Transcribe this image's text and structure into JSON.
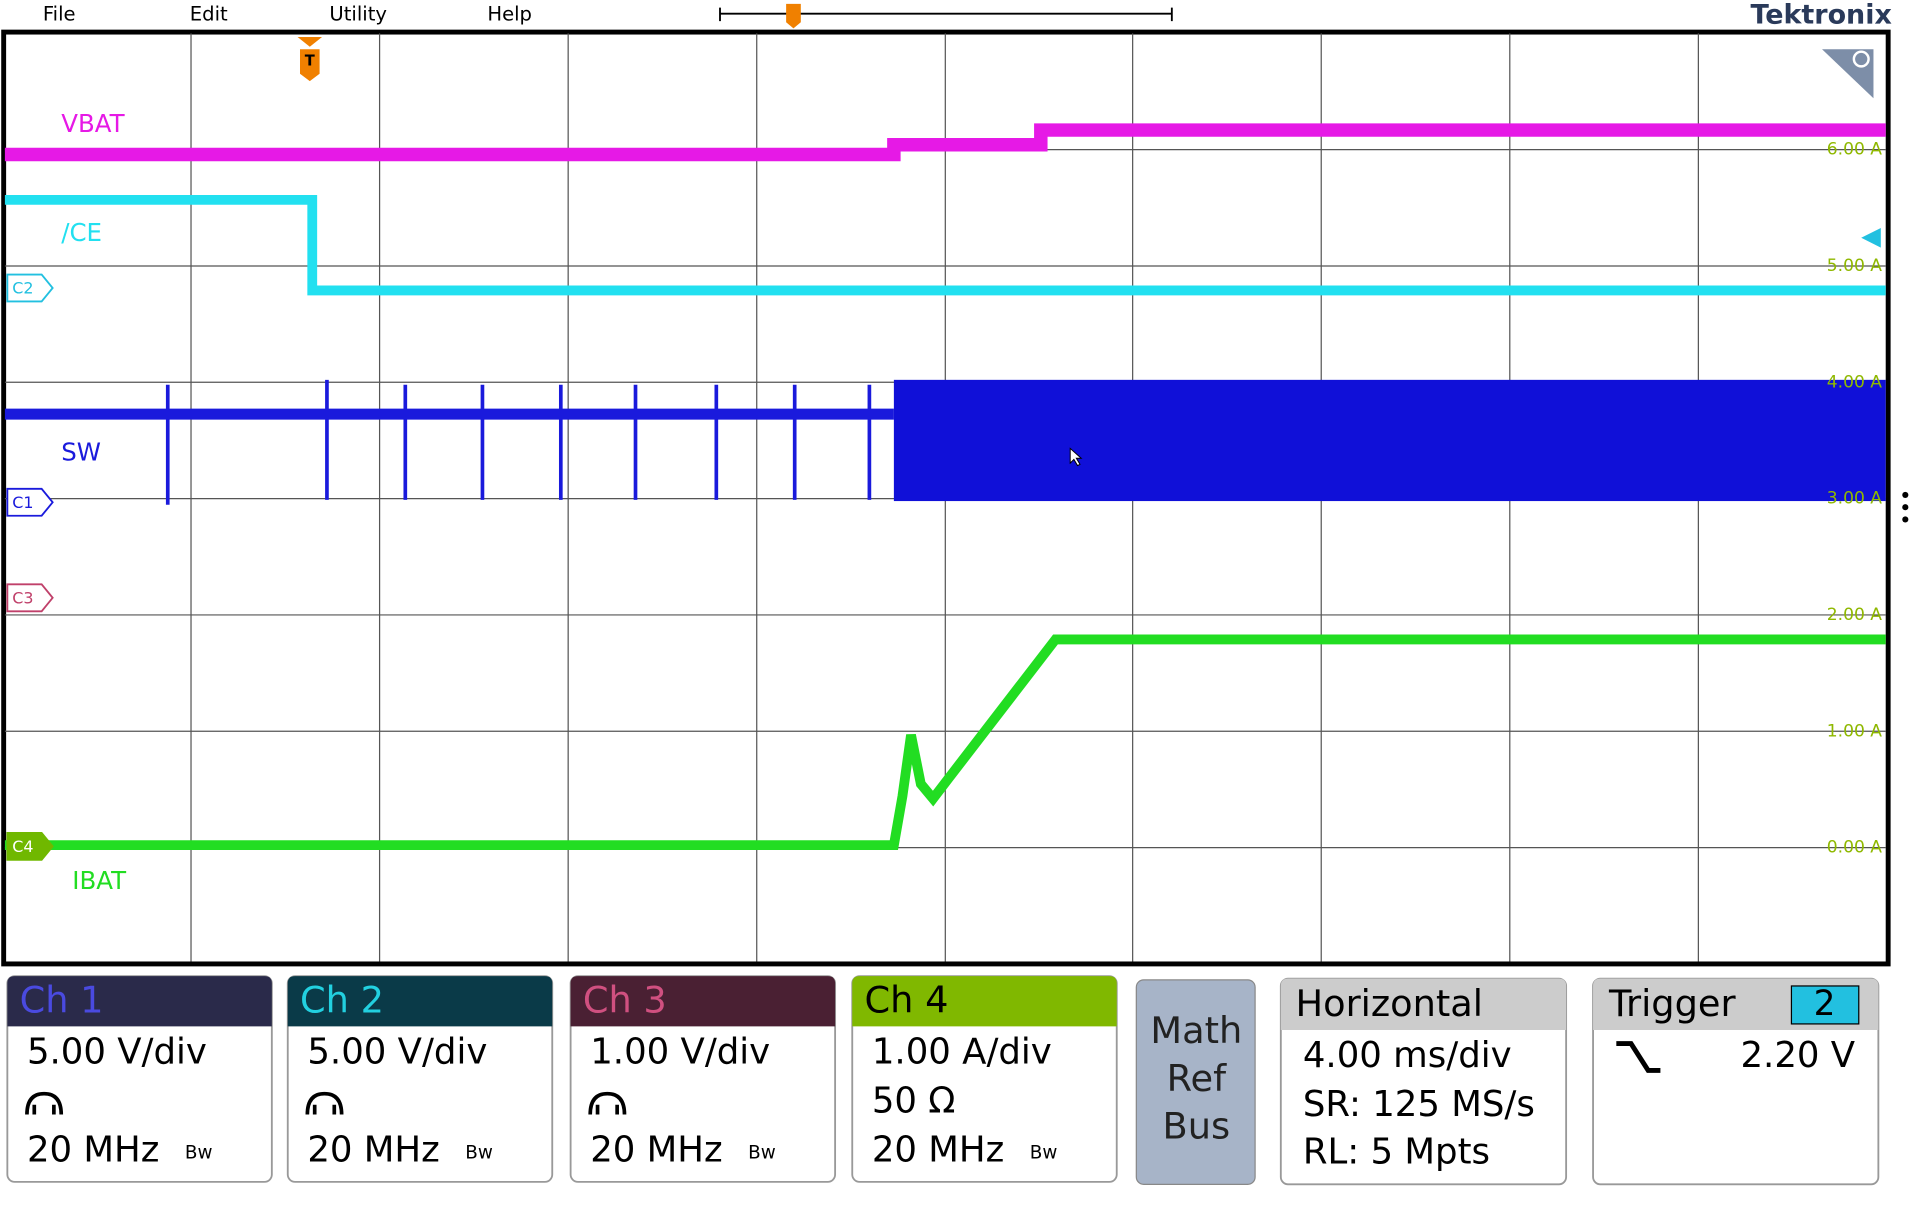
{
  "menu": [
    "File",
    "Edit",
    "Utility",
    "Help"
  ],
  "brand": "Tektronix",
  "trigger_marker": "T",
  "traces": [
    {
      "label": "VBAT"
    },
    {
      "label": "/CE"
    },
    {
      "label": "SW"
    },
    {
      "label": "IBAT"
    }
  ],
  "channel_markers": [
    "C2",
    "C1",
    "C3",
    "C4"
  ],
  "scale_labels": [
    "6.00 A",
    "5.00 A",
    "4.00 A",
    "3.00 A",
    "2.00 A",
    "1.00 A",
    "0.00 A"
  ],
  "channels": [
    {
      "name": "Ch 1",
      "lines": [
        "5.00 V/div",
        "20 MHz"
      ]
    },
    {
      "name": "Ch 2",
      "lines": [
        "5.00 V/div",
        "20 MHz"
      ]
    },
    {
      "name": "Ch 3",
      "lines": [
        "1.00 V/div",
        "20 MHz"
      ]
    },
    {
      "name": "Ch 4",
      "lines": [
        "1.00 A/div",
        "50 Ω",
        "20 MHz"
      ]
    }
  ],
  "bandwidth_icon": "Bw",
  "math_ref_bus": [
    "Math",
    "Ref",
    "Bus"
  ],
  "horizontal": {
    "title": "Horizontal",
    "lines": [
      "4.00 ms/div",
      "SR: 125 MS/s",
      "RL: 5 Mpts"
    ]
  },
  "trigger": {
    "title": "Trigger",
    "source": "2",
    "level": "2.20 V"
  }
}
